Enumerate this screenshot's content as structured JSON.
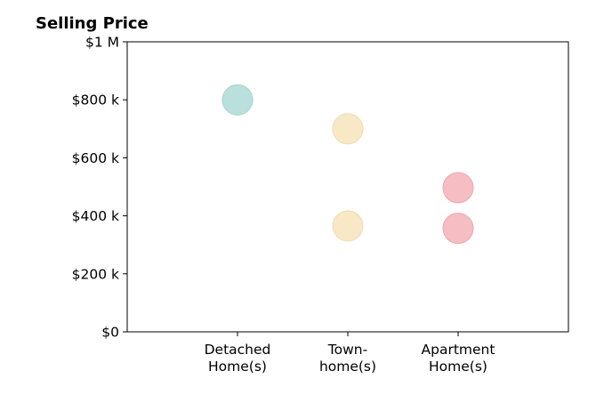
{
  "chart_data": {
    "type": "scatter",
    "title": "Selling Price",
    "xlabel": "",
    "ylabel": "",
    "categories": [
      [
        "Detached",
        "Home(s)"
      ],
      [
        "Town-",
        "home(s)"
      ],
      [
        "Apartment",
        "Home(s)"
      ]
    ],
    "ylim": [
      0,
      1000000
    ],
    "yticks": [
      {
        "value": 0,
        "label": "$0"
      },
      {
        "value": 200000,
        "label": "$200 k"
      },
      {
        "value": 400000,
        "label": "$400 k"
      },
      {
        "value": 600000,
        "label": "$600 k"
      },
      {
        "value": 800000,
        "label": "$800 k"
      },
      {
        "value": 1000000,
        "label": "$1 M"
      }
    ],
    "points": [
      {
        "category": 0,
        "value": 800000,
        "color": "#b9e0dd",
        "stroke": "#a2d3cf"
      },
      {
        "category": 1,
        "value": 700000,
        "color": "#f8e8c6",
        "stroke": "#efdcb2"
      },
      {
        "category": 1,
        "value": 365000,
        "color": "#f8e8c6",
        "stroke": "#efdcb2"
      },
      {
        "category": 2,
        "value": 497000,
        "color": "#f6bec3",
        "stroke": "#eea6ad"
      },
      {
        "category": 2,
        "value": 357000,
        "color": "#f6bec3",
        "stroke": "#eea6ad"
      }
    ],
    "grid": false,
    "legend": "none"
  }
}
